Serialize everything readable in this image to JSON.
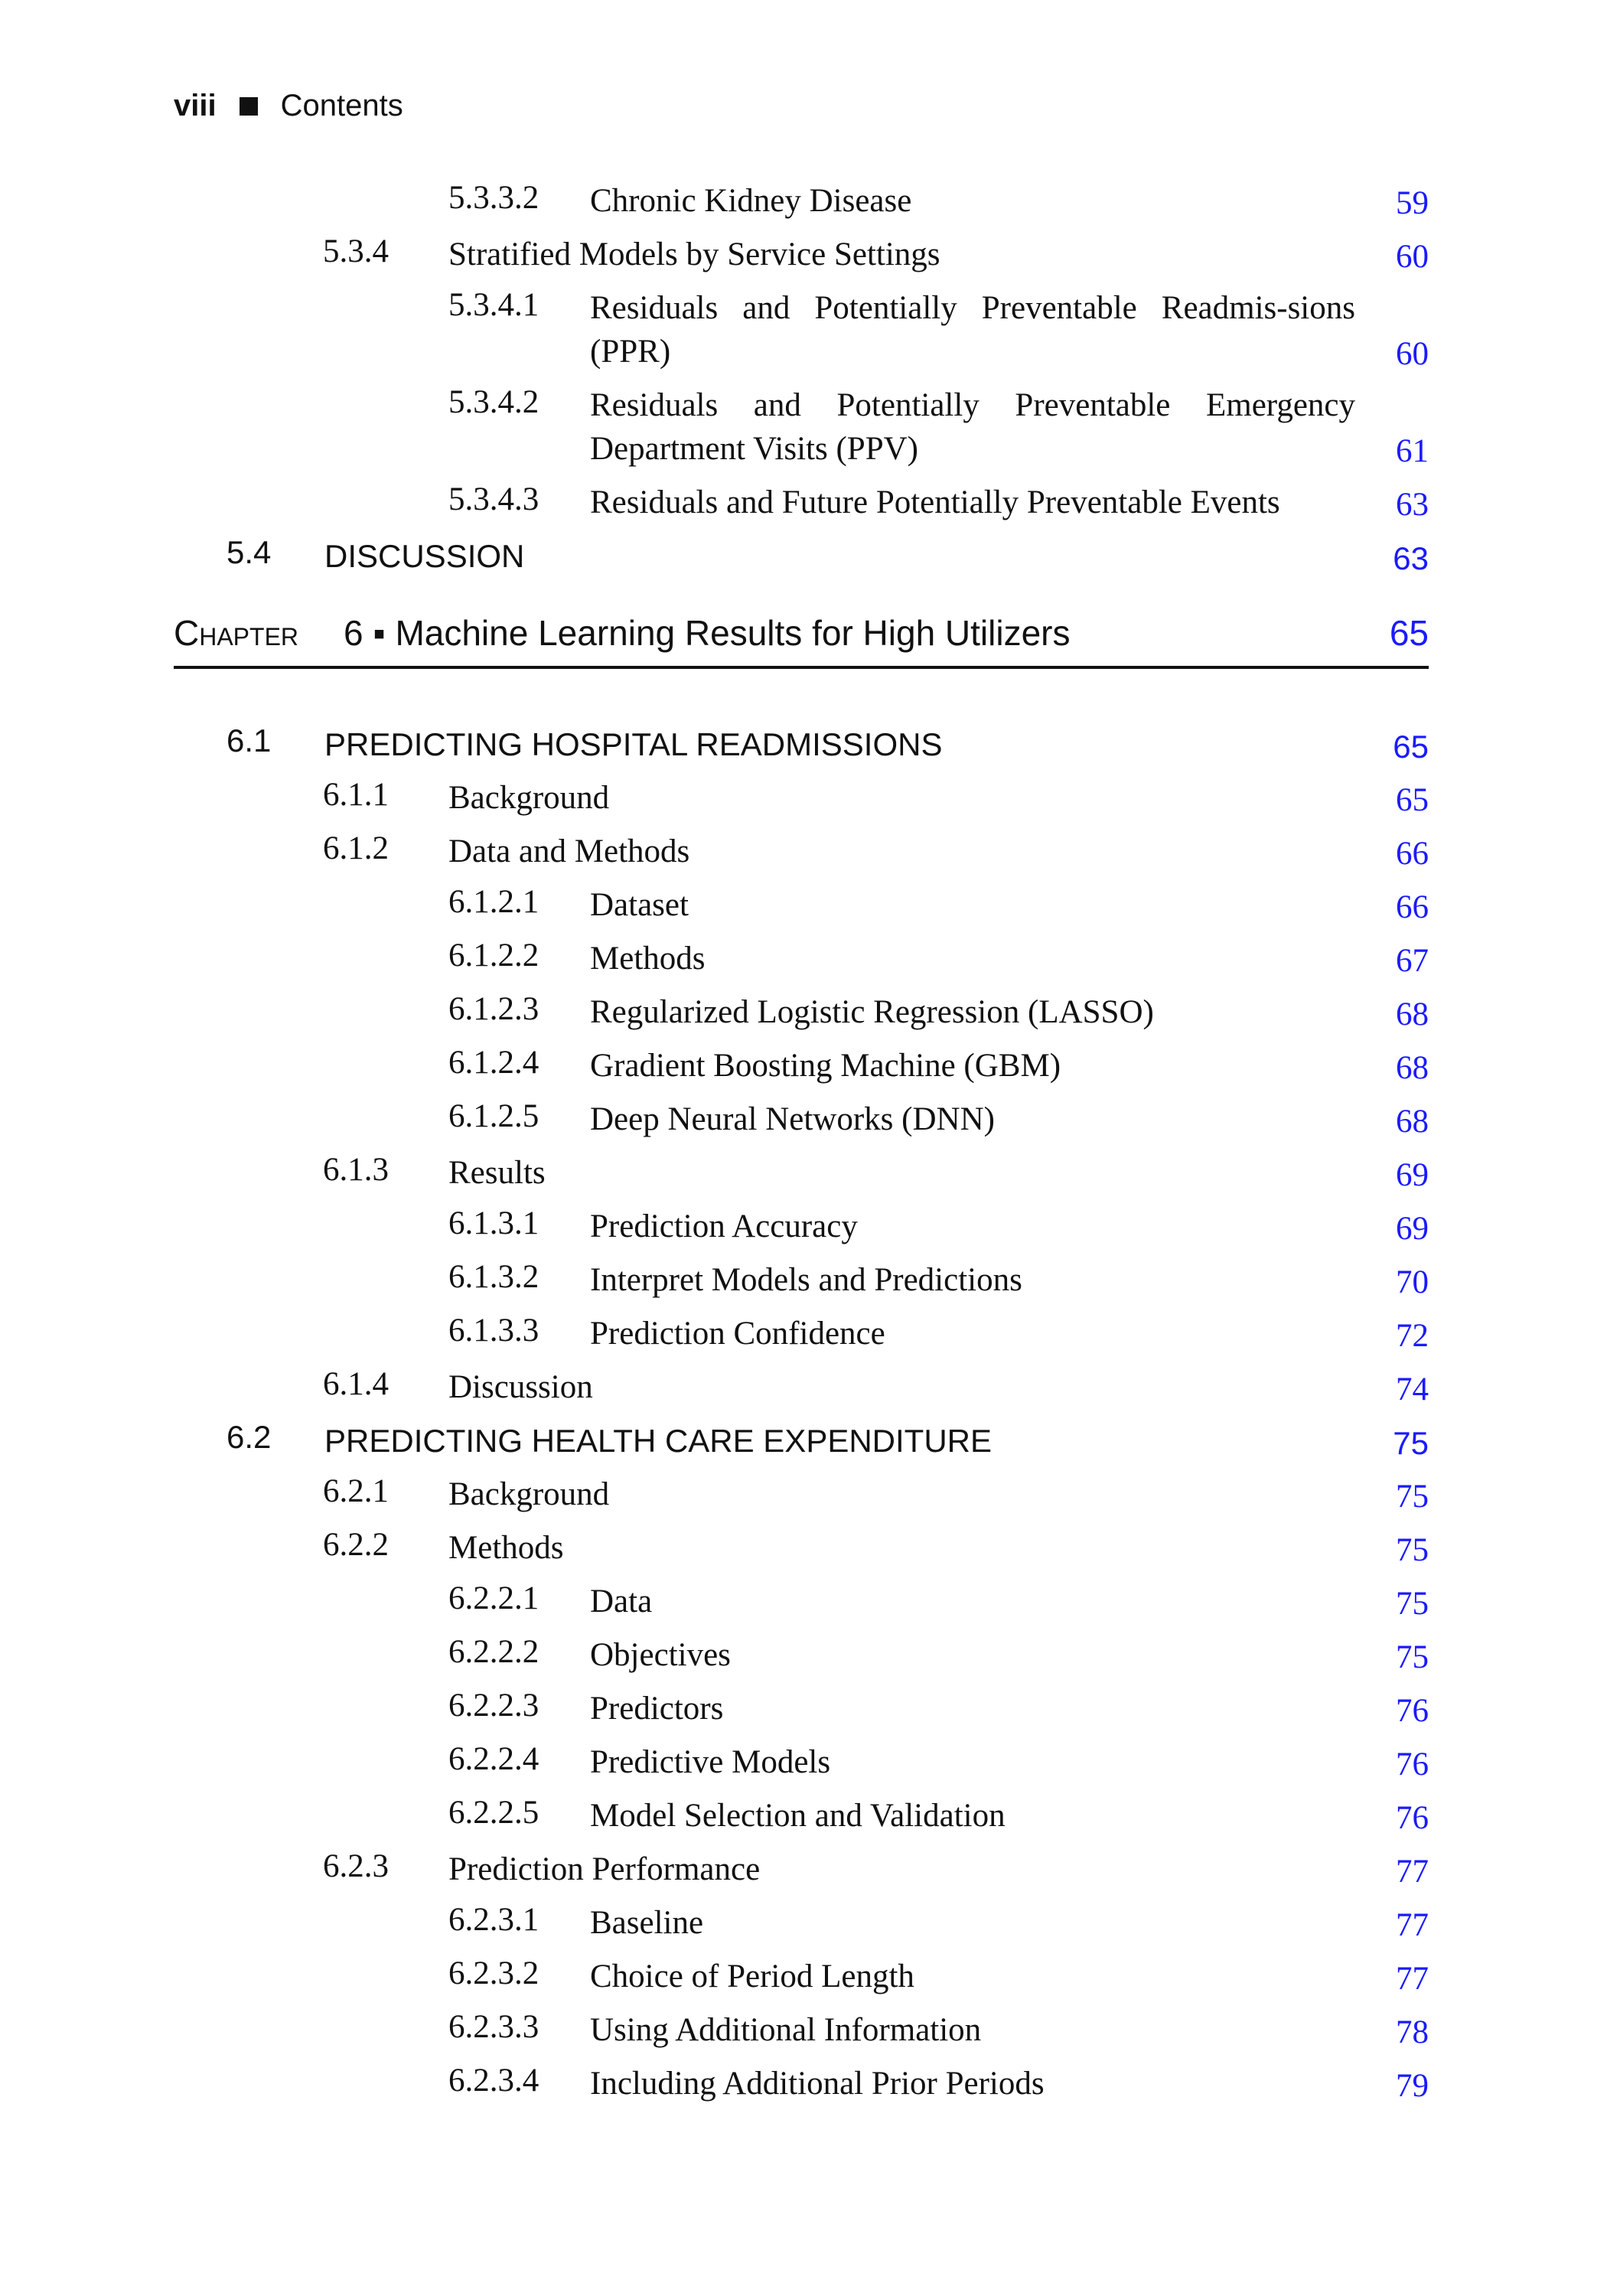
{
  "header": {
    "folio": "viii",
    "section": "Contents"
  },
  "colors": {
    "page_link": "#1a1aff"
  },
  "before": [
    {
      "level": 3,
      "num": "5.3.3.2",
      "title": "Chronic Kidney Disease",
      "page": "59"
    },
    {
      "level": 2,
      "num": "5.3.4",
      "title": "Stratified Models by Service Settings",
      "page": "60"
    },
    {
      "level": 3,
      "num": "5.3.4.1",
      "title": "Residuals and Potentially Preventable Readmis-sions (PPR)",
      "page": "60",
      "two": true
    },
    {
      "level": 3,
      "num": "5.3.4.2",
      "title": "Residuals and Potentially Preventable Emergency Department Visits (PPV)",
      "page": "61",
      "two": true
    },
    {
      "level": 3,
      "num": "5.3.4.3",
      "title": "Residuals and Future Potentially Preventable Events",
      "page": "63"
    },
    {
      "level": 1,
      "num": "5.4",
      "title": "DISCUSSION",
      "page": "63"
    }
  ],
  "chapter": {
    "label": "Chapter",
    "title": "6 ▪ Machine Learning Results for High Utilizers",
    "page": "65"
  },
  "after": [
    {
      "level": 1,
      "num": "6.1",
      "title": "PREDICTING HOSPITAL READMISSIONS",
      "page": "65"
    },
    {
      "level": 2,
      "num": "6.1.1",
      "title": "Background",
      "page": "65"
    },
    {
      "level": 2,
      "num": "6.1.2",
      "title": "Data and Methods",
      "page": "66"
    },
    {
      "level": 3,
      "num": "6.1.2.1",
      "title": "Dataset",
      "page": "66"
    },
    {
      "level": 3,
      "num": "6.1.2.2",
      "title": "Methods",
      "page": "67"
    },
    {
      "level": 3,
      "num": "6.1.2.3",
      "title": "Regularized Logistic Regression (LASSO)",
      "page": "68"
    },
    {
      "level": 3,
      "num": "6.1.2.4",
      "title": "Gradient Boosting Machine (GBM)",
      "page": "68"
    },
    {
      "level": 3,
      "num": "6.1.2.5",
      "title": "Deep Neural Networks (DNN)",
      "page": "68"
    },
    {
      "level": 2,
      "num": "6.1.3",
      "title": "Results",
      "page": "69"
    },
    {
      "level": 3,
      "num": "6.1.3.1",
      "title": "Prediction Accuracy",
      "page": "69"
    },
    {
      "level": 3,
      "num": "6.1.3.2",
      "title": "Interpret Models and Predictions",
      "page": "70"
    },
    {
      "level": 3,
      "num": "6.1.3.3",
      "title": "Prediction Confidence",
      "page": "72"
    },
    {
      "level": 2,
      "num": "6.1.4",
      "title": "Discussion",
      "page": "74"
    },
    {
      "level": 1,
      "num": "6.2",
      "title": "PREDICTING HEALTH CARE EXPENDITURE",
      "page": "75"
    },
    {
      "level": 2,
      "num": "6.2.1",
      "title": "Background",
      "page": "75"
    },
    {
      "level": 2,
      "num": "6.2.2",
      "title": "Methods",
      "page": "75"
    },
    {
      "level": 3,
      "num": "6.2.2.1",
      "title": "Data",
      "page": "75"
    },
    {
      "level": 3,
      "num": "6.2.2.2",
      "title": "Objectives",
      "page": "75"
    },
    {
      "level": 3,
      "num": "6.2.2.3",
      "title": "Predictors",
      "page": "76"
    },
    {
      "level": 3,
      "num": "6.2.2.4",
      "title": "Predictive Models",
      "page": "76"
    },
    {
      "level": 3,
      "num": "6.2.2.5",
      "title": "Model Selection and Validation",
      "page": "76"
    },
    {
      "level": 2,
      "num": "6.2.3",
      "title": "Prediction Performance",
      "page": "77"
    },
    {
      "level": 3,
      "num": "6.2.3.1",
      "title": "Baseline",
      "page": "77"
    },
    {
      "level": 3,
      "num": "6.2.3.2",
      "title": "Choice of Period Length",
      "page": "77"
    },
    {
      "level": 3,
      "num": "6.2.3.3",
      "title": "Using Additional Information",
      "page": "78"
    },
    {
      "level": 3,
      "num": "6.2.3.4",
      "title": "Including Additional Prior Periods",
      "page": "79"
    }
  ]
}
